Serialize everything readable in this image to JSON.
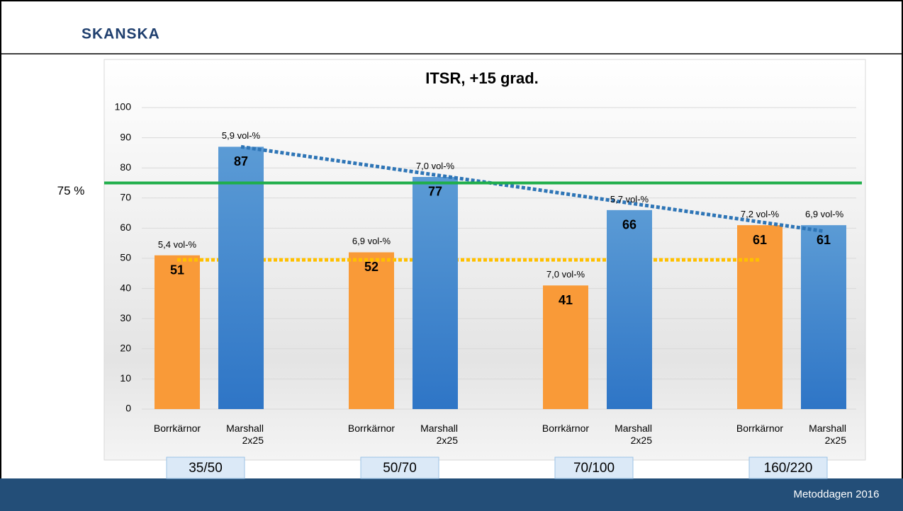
{
  "logo": "SKANSKA",
  "footer": "Metoddagen 2016",
  "chart_data": {
    "type": "bar",
    "title": "ITSR, +15 grad.",
    "categories": [
      "35/50",
      "50/70",
      "70/100",
      "160/220"
    ],
    "series": [
      {
        "name": "Borrkärnor",
        "color": "#f99a38",
        "values": [
          51,
          52,
          41,
          61
        ],
        "annotations": [
          "5,4 vol-%",
          "6,9 vol-%",
          "7,0 vol-%",
          "7,2 vol-%"
        ],
        "trend": [
          49.5,
          49.5
        ],
        "trend_color": "#ffc000"
      },
      {
        "name": "Marshall 2x25",
        "color": "#3a86cc",
        "values": [
          87,
          77,
          66,
          61
        ],
        "annotations": [
          "5,9 vol-%",
          "7,0 vol-%",
          "5,7 vol-%",
          "6,9 vol-%"
        ],
        "trend": [
          87,
          59
        ],
        "trend_color": "#2e75b6"
      }
    ],
    "reference_line": {
      "value": 75,
      "label": "75 %",
      "color": "#1fae4a"
    },
    "ylim": [
      0,
      100
    ],
    "yticks": [
      0,
      10,
      20,
      30,
      40,
      50,
      60,
      70,
      80,
      90,
      100
    ],
    "grid": true
  }
}
